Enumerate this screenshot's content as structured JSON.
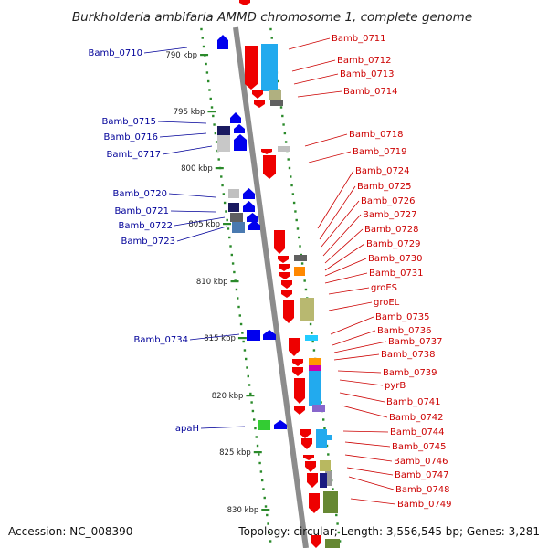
{
  "title": "Burkholderia ambifaria AMMD chromosome 1, complete genome",
  "footer": {
    "accession": "Accession: NC_008390",
    "topology": "Topology: circular; Length: 3,556,545 bp; Genes: 3,281"
  },
  "colors": {
    "left_label": "#000099",
    "right_label": "#cc0000",
    "backbone": "#8c8c8c",
    "dots": "#2a8a2a",
    "forward_gene": "#0000ee",
    "reverse_gene": "#ee0000"
  },
  "scale_ticks": [
    "790 kbp",
    "795 kbp",
    "800 kbp",
    "805 kbp",
    "810 kbp",
    "815 kbp",
    "820 kbp",
    "825 kbp",
    "830 kbp"
  ],
  "left_labels": [
    "Bamb_0710",
    "Bamb_0715",
    "Bamb_0716",
    "Bamb_0717",
    "Bamb_0720",
    "Bamb_0721",
    "Bamb_0722",
    "Bamb_0723",
    "Bamb_0734",
    "apaH"
  ],
  "right_labels": [
    "Bamb_0711",
    "Bamb_0712",
    "Bamb_0713",
    "Bamb_0714",
    "Bamb_0718",
    "Bamb_0719",
    "Bamb_0724",
    "Bamb_0725",
    "Bamb_0726",
    "Bamb_0727",
    "Bamb_0728",
    "Bamb_0729",
    "Bamb_0730",
    "Bamb_0731",
    "groES",
    "groEL",
    "Bamb_0735",
    "Bamb_0736",
    "Bamb_0737",
    "Bamb_0738",
    "Bamb_0739",
    "pyrB",
    "Bamb_0741",
    "Bamb_0742",
    "Bamb_0744",
    "Bamb_0745",
    "Bamb_0746",
    "Bamb_0747",
    "Bamb_0748",
    "Bamb_0749"
  ]
}
